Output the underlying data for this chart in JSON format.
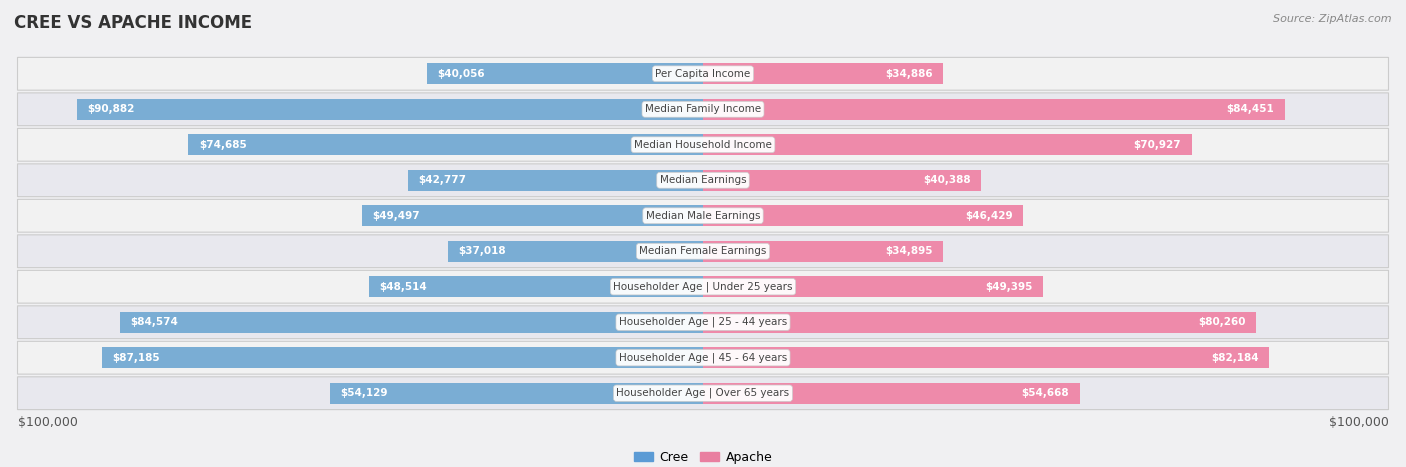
{
  "title": "CREE VS APACHE INCOME",
  "source": "Source: ZipAtlas.com",
  "categories": [
    "Per Capita Income",
    "Median Family Income",
    "Median Household Income",
    "Median Earnings",
    "Median Male Earnings",
    "Median Female Earnings",
    "Householder Age | Under 25 years",
    "Householder Age | 25 - 44 years",
    "Householder Age | 45 - 64 years",
    "Householder Age | Over 65 years"
  ],
  "cree_values": [
    40056,
    90882,
    74685,
    42777,
    49497,
    37018,
    48514,
    84574,
    87185,
    54129
  ],
  "apache_values": [
    34886,
    84451,
    70927,
    40388,
    46429,
    34895,
    49395,
    80260,
    82184,
    54668
  ],
  "cree_labels": [
    "$40,056",
    "$90,882",
    "$74,685",
    "$42,777",
    "$49,497",
    "$37,018",
    "$48,514",
    "$84,574",
    "$87,185",
    "$54,129"
  ],
  "apache_labels": [
    "$34,886",
    "$84,451",
    "$70,927",
    "$40,388",
    "$46,429",
    "$34,895",
    "$49,395",
    "$80,260",
    "$82,184",
    "$54,668"
  ],
  "max_value": 100000,
  "cree_color_light": "#aac4e0",
  "cree_color": "#7aadd4",
  "apache_color_light": "#f5b8cc",
  "apache_color": "#ee8aaa",
  "bar_height": 0.58,
  "row_colors": [
    "#f2f2f2",
    "#e8e8ee"
  ],
  "label_inside_color": "#ffffff",
  "label_outside_color": "#555555",
  "axis_label_left": "$100,000",
  "axis_label_right": "$100,000",
  "legend_cree": "Cree",
  "legend_apache": "Apache",
  "legend_cree_color": "#5b9bd5",
  "legend_apache_color": "#e97fa0",
  "inside_threshold": 28000,
  "bg_color": "#f0f0f2"
}
